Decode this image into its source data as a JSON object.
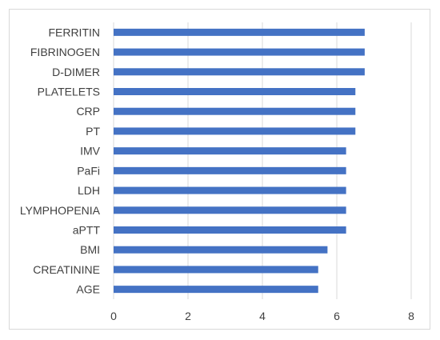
{
  "chart_data": {
    "type": "bar",
    "orientation": "horizontal",
    "title": "",
    "xlabel": "",
    "ylabel": "",
    "categories": [
      "FERRITIN",
      "FIBRINOGEN",
      "D-DIMER",
      "PLATELETS",
      "CRP",
      "PT",
      "IMV",
      "PaFi",
      "LDH",
      "LYMPHOPENIA",
      "aPTT",
      "BMI",
      "CREATININE",
      "AGE"
    ],
    "values": [
      6.75,
      6.75,
      6.75,
      6.5,
      6.5,
      6.5,
      6.25,
      6.25,
      6.25,
      6.25,
      6.25,
      5.75,
      5.5,
      5.5
    ],
    "xlim": [
      0,
      8
    ],
    "xticks": [
      "0",
      "2",
      "4",
      "6",
      "8"
    ],
    "grid": "vertical",
    "legend": "none",
    "bar_color": "#4472c4",
    "grid_color": "#d9d9d9"
  }
}
